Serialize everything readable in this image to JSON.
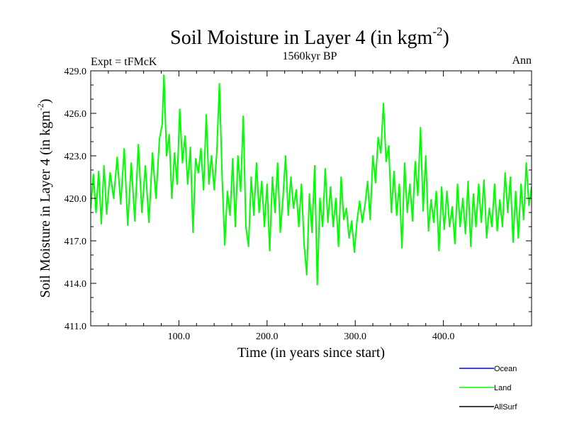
{
  "chart_data": {
    "type": "line",
    "title": "Soil Moisture in Layer 4 (in kgm",
    "title_sup": "-2",
    "title_close": ")",
    "subtitle_left": "Expt = tFMcK",
    "subtitle_center": "1560kyr BP",
    "subtitle_right": "Ann",
    "xlabel": "Time (in years since start)",
    "ylabel": "Soil Moisture in Layer 4 (in kgm",
    "ylabel_sup": "-2",
    "ylabel_close": ")",
    "xlim": [
      0,
      500
    ],
    "ylim": [
      411.0,
      429.0
    ],
    "x_ticks": [
      100,
      200,
      300,
      400
    ],
    "x_tick_labels": [
      "100.0",
      "200.0",
      "300.0",
      "400.0"
    ],
    "y_ticks": [
      411,
      414,
      417,
      420,
      423,
      426,
      429
    ],
    "y_tick_labels": [
      "411.0",
      "414.0",
      "417.0",
      "420.0",
      "423.0",
      "426.0",
      "429.0"
    ],
    "series": [
      {
        "name": "Land",
        "color": "#00ff00",
        "keypoints": [
          [
            0,
            419.3
          ],
          [
            3,
            421.7
          ],
          [
            6,
            419.0
          ],
          [
            9,
            421.9
          ],
          [
            12,
            418.2
          ],
          [
            15,
            422.3
          ],
          [
            18,
            418.9
          ],
          [
            22,
            421.8
          ],
          [
            26,
            420.0
          ],
          [
            30,
            422.9
          ],
          [
            34,
            419.6
          ],
          [
            38,
            423.5
          ],
          [
            42,
            418.1
          ],
          [
            46,
            422.5
          ],
          [
            50,
            418.4
          ],
          [
            54,
            423.8
          ],
          [
            58,
            419.0
          ],
          [
            62,
            422.3
          ],
          [
            66,
            418.3
          ],
          [
            70,
            423.2
          ],
          [
            74,
            420.0
          ],
          [
            78,
            424.2
          ],
          [
            81,
            425.2
          ],
          [
            83,
            428.7
          ],
          [
            86,
            423.0
          ],
          [
            89,
            424.5
          ],
          [
            92,
            420.0
          ],
          [
            95,
            423.2
          ],
          [
            98,
            421.0
          ],
          [
            101,
            426.3
          ],
          [
            104,
            422.5
          ],
          [
            107,
            424.4
          ],
          [
            110,
            421.0
          ],
          [
            113,
            423.6
          ],
          [
            116,
            417.6
          ],
          [
            119,
            422.8
          ],
          [
            122,
            421.8
          ],
          [
            125,
            423.5
          ],
          [
            128,
            420.6
          ],
          [
            131,
            425.9
          ],
          [
            134,
            421.0
          ],
          [
            137,
            423.0
          ],
          [
            140,
            420.6
          ],
          [
            143,
            423.3
          ],
          [
            146,
            428.1
          ],
          [
            149,
            421.5
          ],
          [
            152,
            416.7
          ],
          [
            155,
            420.5
          ],
          [
            158,
            418.8
          ],
          [
            161,
            422.8
          ],
          [
            164,
            418.0
          ],
          [
            167,
            423.0
          ],
          [
            170,
            420.5
          ],
          [
            173,
            425.8
          ],
          [
            176,
            418.0
          ],
          [
            179,
            416.6
          ],
          [
            182,
            421.5
          ],
          [
            185,
            418.8
          ],
          [
            188,
            422.5
          ],
          [
            191,
            419.0
          ],
          [
            194,
            421.2
          ],
          [
            197,
            418.0
          ],
          [
            200,
            421.0
          ],
          [
            203,
            416.3
          ],
          [
            206,
            421.5
          ],
          [
            209,
            419.0
          ],
          [
            212,
            422.5
          ],
          [
            215,
            417.6
          ],
          [
            218,
            420.0
          ],
          [
            221,
            423.0
          ],
          [
            224,
            418.8
          ],
          [
            227,
            421.5
          ],
          [
            230,
            419.3
          ],
          [
            233,
            420.6
          ],
          [
            236,
            418.0
          ],
          [
            239,
            421.0
          ],
          [
            242,
            416.8
          ],
          [
            245,
            414.6
          ],
          [
            248,
            420.3
          ],
          [
            251,
            417.6
          ],
          [
            254,
            422.3
          ],
          [
            257,
            413.9
          ],
          [
            260,
            420.0
          ],
          [
            263,
            418.0
          ],
          [
            266,
            422.1
          ],
          [
            269,
            418.3
          ],
          [
            272,
            420.8
          ],
          [
            275,
            418.0
          ],
          [
            278,
            420.0
          ],
          [
            281,
            416.6
          ],
          [
            284,
            421.5
          ],
          [
            287,
            418.5
          ],
          [
            290,
            419.3
          ],
          [
            293,
            417.2
          ],
          [
            296,
            418.4
          ],
          [
            299,
            416.2
          ],
          [
            302,
            418.4
          ],
          [
            305,
            419.8
          ],
          [
            308,
            418.3
          ],
          [
            311,
            419.5
          ],
          [
            314,
            421.2
          ],
          [
            317,
            418.5
          ],
          [
            320,
            423.0
          ],
          [
            323,
            421.1
          ],
          [
            326,
            424.3
          ],
          [
            329,
            423.2
          ],
          [
            332,
            426.7
          ],
          [
            335,
            422.6
          ],
          [
            338,
            423.7
          ],
          [
            341,
            419.0
          ],
          [
            344,
            421.9
          ],
          [
            347,
            418.8
          ],
          [
            350,
            421.0
          ],
          [
            353,
            416.5
          ],
          [
            356,
            422.5
          ],
          [
            359,
            419.0
          ],
          [
            362,
            421.0
          ],
          [
            365,
            418.4
          ],
          [
            368,
            422.6
          ],
          [
            371,
            420.2
          ],
          [
            374,
            425.0
          ],
          [
            377,
            419.1
          ],
          [
            380,
            423.0
          ],
          [
            383,
            417.7
          ],
          [
            386,
            419.9
          ],
          [
            389,
            418.3
          ],
          [
            392,
            420.5
          ],
          [
            395,
            416.3
          ],
          [
            398,
            420.8
          ],
          [
            401,
            417.8
          ],
          [
            404,
            420.5
          ],
          [
            407,
            418.0
          ],
          [
            410,
            419.4
          ],
          [
            413,
            416.8
          ],
          [
            416,
            421.0
          ],
          [
            419,
            418.0
          ],
          [
            422,
            420.0
          ],
          [
            425,
            417.5
          ],
          [
            428,
            421.2
          ],
          [
            431,
            416.6
          ],
          [
            434,
            420.3
          ],
          [
            437,
            418.0
          ],
          [
            440,
            421.0
          ],
          [
            443,
            418.3
          ],
          [
            446,
            421.3
          ],
          [
            449,
            417.2
          ],
          [
            452,
            419.3
          ],
          [
            455,
            418.0
          ],
          [
            458,
            421.0
          ],
          [
            461,
            417.7
          ],
          [
            464,
            419.9
          ],
          [
            467,
            418.0
          ],
          [
            470,
            421.8
          ],
          [
            473,
            419.0
          ],
          [
            476,
            421.5
          ],
          [
            479,
            416.9
          ],
          [
            482,
            420.5
          ],
          [
            485,
            417.2
          ],
          [
            488,
            421.0
          ],
          [
            491,
            418.5
          ],
          [
            494,
            422.5
          ],
          [
            497,
            419.5
          ],
          [
            500,
            420.8
          ]
        ]
      }
    ],
    "legend_position": "bottom-right",
    "legend": [
      {
        "label": "Ocean",
        "color": "#0000ff"
      },
      {
        "label": "Land",
        "color": "#00ff00"
      },
      {
        "label": "AllSurf",
        "color": "#000000"
      }
    ]
  }
}
